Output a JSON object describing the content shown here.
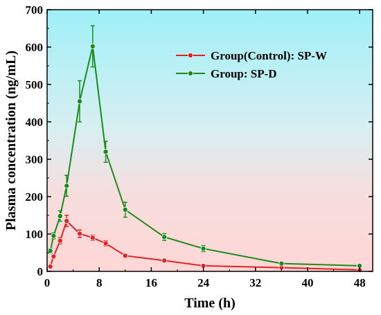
{
  "chart_data": {
    "type": "line",
    "xlabel": "Time (h)",
    "ylabel": "Plasma concentration (ng/mL)",
    "xlim": [
      0,
      50
    ],
    "ylim": [
      0,
      700
    ],
    "xticks": [
      0,
      8,
      16,
      24,
      32,
      40,
      48
    ],
    "yticks": [
      0,
      100,
      200,
      300,
      400,
      500,
      600,
      700
    ],
    "grid": false,
    "legend_position": "top-right",
    "background": "vertical gradient from cyan at top to pink at bottom",
    "series": [
      {
        "name": "Group(Control): SP-W",
        "color": "#e32222",
        "x": [
          0.5,
          1,
          2,
          3,
          5,
          7,
          9,
          12,
          18,
          24,
          36,
          48
        ],
        "y": [
          13,
          40,
          82,
          135,
          101,
          90,
          75,
          42,
          29,
          15,
          10,
          4
        ],
        "err": [
          3,
          5,
          8,
          15,
          10,
          7,
          7,
          4,
          3,
          2,
          2,
          1
        ]
      },
      {
        "name": "Group: SP-D",
        "color": "#1a8a1a",
        "x": [
          0.5,
          1,
          2,
          3,
          5,
          7,
          9,
          12,
          18,
          24,
          36,
          48
        ],
        "y": [
          55,
          95,
          148,
          229,
          455,
          602,
          320,
          165,
          92,
          61,
          21,
          15
        ],
        "err": [
          6,
          8,
          14,
          28,
          55,
          55,
          28,
          20,
          9,
          8,
          3,
          2
        ]
      }
    ]
  }
}
